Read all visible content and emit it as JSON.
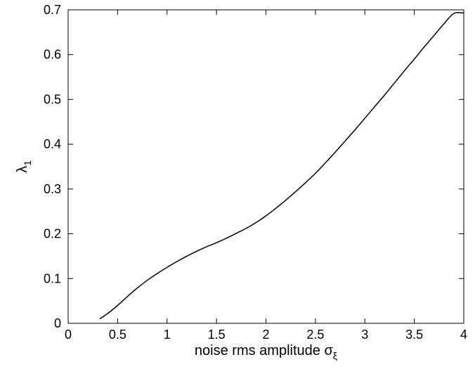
{
  "chart_data": {
    "type": "line",
    "title": "",
    "xlabel": {
      "prefix": "noise rms amplitude ",
      "symbol": "σ",
      "subscript": "ξ"
    },
    "ylabel": {
      "symbol": "λ",
      "subscript": "1"
    },
    "xlim": [
      0,
      4
    ],
    "ylim": [
      0,
      0.7
    ],
    "xticks": [
      0,
      0.5,
      1,
      1.5,
      2,
      2.5,
      3,
      3.5,
      4
    ],
    "xtick_labels": [
      "0",
      "0.5",
      "1",
      "1.5",
      "2",
      "2.5",
      "3",
      "3.5",
      "4"
    ],
    "yticks": [
      0,
      0.1,
      0.2,
      0.3,
      0.4,
      0.5,
      0.6,
      0.7
    ],
    "ytick_labels": [
      "0",
      "0.1",
      "0.2",
      "0.3",
      "0.4",
      "0.5",
      "0.6",
      "0.7"
    ],
    "grid": false,
    "legend": "none",
    "line_color": "#000000",
    "series": [
      {
        "x": [
          0.32,
          0.4,
          0.5,
          0.6,
          0.7,
          0.8,
          0.9,
          1.0,
          1.1,
          1.2,
          1.3,
          1.4,
          1.5,
          1.6,
          1.7,
          1.8,
          1.9,
          2.0,
          2.1,
          2.2,
          2.3,
          2.4,
          2.5,
          2.6,
          2.7,
          2.8,
          2.9,
          3.0,
          3.1,
          3.2,
          3.3,
          3.4,
          3.5,
          3.6,
          3.7,
          3.8,
          3.9,
          4.0
        ],
        "y": [
          0.01,
          0.022,
          0.04,
          0.06,
          0.079,
          0.096,
          0.111,
          0.125,
          0.138,
          0.15,
          0.161,
          0.171,
          0.18,
          0.19,
          0.201,
          0.212,
          0.225,
          0.24,
          0.257,
          0.275,
          0.294,
          0.314,
          0.335,
          0.358,
          0.382,
          0.407,
          0.432,
          0.458,
          0.484,
          0.51,
          0.537,
          0.564,
          0.59,
          0.617,
          0.643,
          0.669,
          0.692,
          0.693
        ]
      }
    ]
  }
}
